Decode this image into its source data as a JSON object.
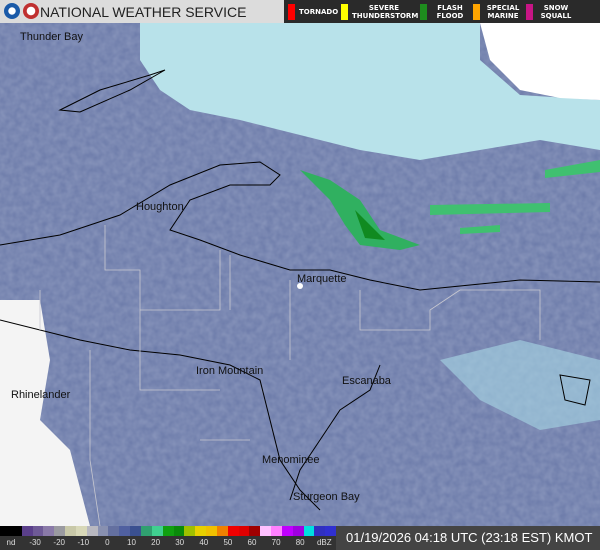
{
  "header": {
    "title": "NATIONAL WEATHER SERVICE",
    "logos": [
      "noaa-logo",
      "nws-logo"
    ]
  },
  "warnings": [
    {
      "label": "TORNADO",
      "color": "#ff0000"
    },
    {
      "label": "SEVERE\nTHUNDERSTORM",
      "color": "#ffff00"
    },
    {
      "label": "FLASH\nFLOOD",
      "color": "#1e8c1e"
    },
    {
      "label": "SPECIAL\nMARINE",
      "color": "#ffa500"
    },
    {
      "label": "SNOW\nSQUALL",
      "color": "#c71585"
    }
  ],
  "cities": [
    "Thunder Bay",
    "Houghton",
    "Marquette",
    "Iron Mountain",
    "Escanaba",
    "Rhinelander",
    "Menominee",
    "Sturgeon Bay"
  ],
  "legend": {
    "ticks": [
      "nd",
      "-30",
      "-20",
      "-10",
      "0",
      "10",
      "20",
      "30",
      "40",
      "50",
      "60",
      "70",
      "80",
      "dBZ"
    ],
    "colors": [
      "#000",
      "#000",
      "#5a3f8a",
      "#6e5a96",
      "#8a7aa8",
      "#9a9aa0",
      "#c8c8a8",
      "#d8d8b8",
      "#b8b8c0",
      "#8890b0",
      "#6470a0",
      "#5060a0",
      "#3a5090",
      "#30a070",
      "#40d090",
      "#10a010",
      "#0a8a0a",
      "#a0c000",
      "#e8d000",
      "#f0c000",
      "#f08000",
      "#f00000",
      "#e00000",
      "#a00000",
      "#ffc0ff",
      "#ff80ff",
      "#c000ff",
      "#a000e0",
      "#00e0e0",
      "#3030c0",
      "#3030d0"
    ]
  },
  "timestamp": "01/19/2026 04:18 UTC (23:18 EST) KMOT"
}
